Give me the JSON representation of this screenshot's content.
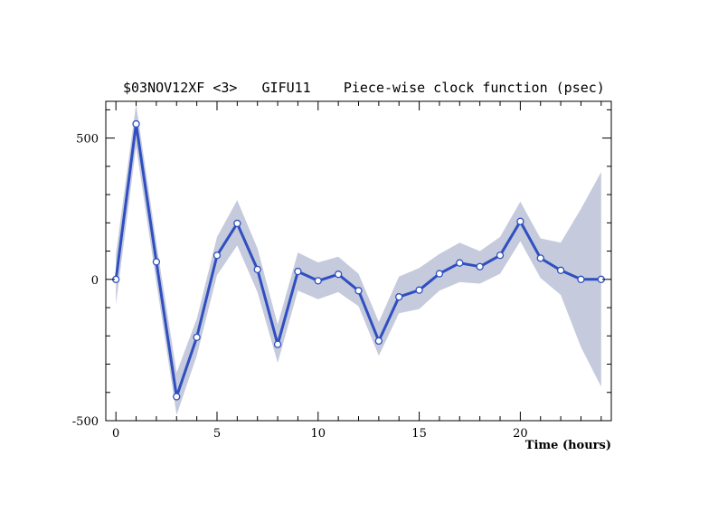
{
  "chart_data": {
    "type": "line",
    "title": "$03NOV12XF <3>   GIFU11    Piece-wise clock function (psec)",
    "xlabel": "Time (hours)",
    "ylabel": "",
    "xlim": [
      -0.5,
      24.5
    ],
    "ylim": [
      -500,
      630
    ],
    "x_ticks": [
      0,
      5,
      10,
      15,
      20
    ],
    "y_ticks": [
      -500,
      0,
      500
    ],
    "grid": false,
    "colors": {
      "line": "#2f4fc0",
      "band": "#c5cadc",
      "marker_fill": "#ffffff"
    },
    "series": [
      {
        "x": [
          0,
          1,
          2,
          3,
          4,
          5,
          6,
          7,
          8,
          9,
          10,
          11,
          12,
          13,
          14,
          15,
          16,
          17,
          18,
          19,
          20,
          21,
          22,
          23,
          24
        ],
        "values": [
          0,
          550,
          62,
          -415,
          -205,
          85,
          198,
          35,
          -230,
          28,
          -5,
          18,
          -40,
          -218,
          -62,
          -38,
          20,
          58,
          45,
          85,
          205,
          75,
          32,
          0,
          0
        ],
        "band_upper": [
          90,
          620,
          130,
          -330,
          -140,
          150,
          280,
          110,
          -160,
          95,
          60,
          80,
          20,
          -150,
          10,
          40,
          90,
          130,
          100,
          150,
          275,
          145,
          130,
          250,
          380
        ],
        "band_lower": [
          -90,
          470,
          -10,
          -480,
          -270,
          15,
          120,
          -45,
          -295,
          -40,
          -70,
          -45,
          -95,
          -270,
          -120,
          -105,
          -40,
          -10,
          -15,
          20,
          135,
          5,
          -55,
          -240,
          -380
        ]
      }
    ]
  }
}
